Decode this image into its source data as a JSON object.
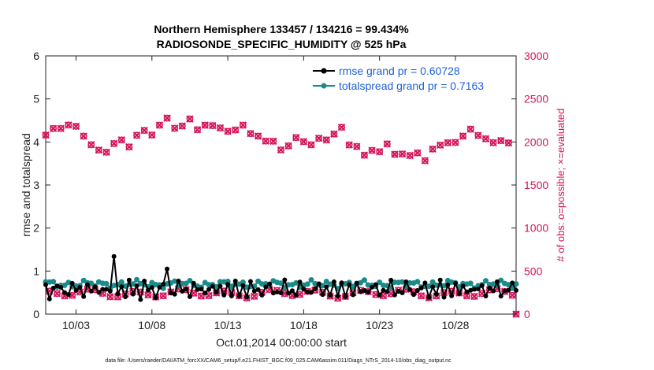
{
  "chart_data": {
    "type": "line",
    "title_line1": "Northern Hemisphere 133457 / 134216 = 99.434%",
    "title_line2": "RADIOSONDE_SPECIFIC_HUMIDITY @ 525 hPa",
    "xlabel": "Oct.01,2014 00:00:00 start",
    "ylabel_left": "rmse and totalspread",
    "ylabel_right": "# of obs: o=possible; ×=evaluated",
    "x_ticks": [
      "10/03",
      "10/08",
      "10/13",
      "10/18",
      "10/23",
      "10/28"
    ],
    "x_tick_days": [
      2,
      7,
      12,
      17,
      22,
      27
    ],
    "xlim": [
      0,
      31
    ],
    "ylim_left": [
      0,
      6
    ],
    "ylim_right": [
      0,
      3000
    ],
    "y_ticks_left": [
      "0",
      "1",
      "2",
      "3",
      "4",
      "5",
      "6"
    ],
    "y_ticks_right": [
      "0",
      "500",
      "1000",
      "1500",
      "2000",
      "2500",
      "3000"
    ],
    "colors": {
      "rmse": "#000000",
      "spread": "#1a8a8a",
      "obs": "#d4145a",
      "legend_text": "#1f5fd6"
    },
    "legend": [
      {
        "name": "rmse grand pr = 0.60728"
      },
      {
        "name": "totalspread grand pr = 0.7163"
      }
    ],
    "footer": "data file: /Users/raeder/DAI/ATM_forcXX/CAM6_setup/f.e21.FHIST_BGC.f09_025.CAM6assim.011/Diags_NTrS_2014-10/obs_diag_output.nc"
  }
}
